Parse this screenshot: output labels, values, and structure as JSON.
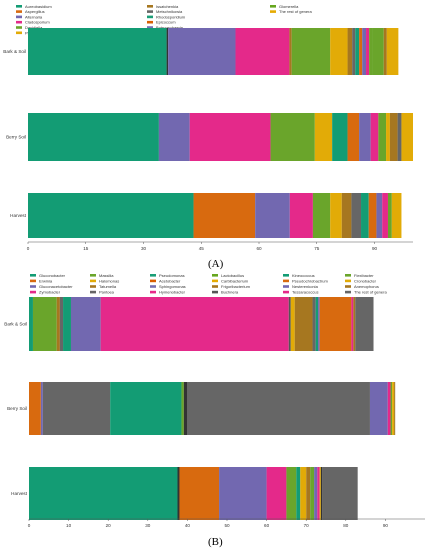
{
  "chart_data": [
    {
      "type": "bar",
      "orientation": "horizontal",
      "stacked": true,
      "panel_label": "(A)",
      "categories": [
        "Bark & Soil",
        "Berry Soil",
        "Harvest"
      ],
      "xlim": [
        0,
        100
      ],
      "xticks": [
        0,
        15,
        30,
        45,
        60,
        75,
        90
      ],
      "legend_position": "top",
      "grid": false,
      "legend": [
        {
          "name": "Aureobasidium",
          "color": "#139c74"
        },
        {
          "name": "Aspergillus",
          "color": "#d86a0f"
        },
        {
          "name": "Alternaria",
          "color": "#7268b0"
        },
        {
          "name": "Cladosporium",
          "color": "#e4298a"
        },
        {
          "name": "Davidiella",
          "color": "#6aa52b"
        },
        {
          "name": "Phaeoacremonium",
          "color": "#e2ab07"
        },
        {
          "name": "Issatchenkia",
          "color": "#a67720"
        },
        {
          "name": "Metschnikowia",
          "color": "#666666"
        },
        {
          "name": "Rhodosporidium",
          "color": "#1b9e77"
        },
        {
          "name": "Epicoccum",
          "color": "#d95f02"
        },
        {
          "name": "Botryosphaeria",
          "color": "#7570b3"
        },
        {
          "name": "Lewia",
          "color": "#e7298a"
        },
        {
          "name": "Glomerella",
          "color": "#66a61e"
        },
        {
          "name": "The rest of genera",
          "color": "#e6ab02"
        }
      ],
      "rows": [
        {
          "category": "Bark & Soil",
          "segments": [
            {
              "value": 36.0,
              "color": "#139c74"
            },
            {
              "value": 0.4,
              "color": "#333333"
            },
            {
              "value": 17.5,
              "color": "#7268b0"
            },
            {
              "value": 14.0,
              "color": "#e4298a"
            },
            {
              "value": 0.6,
              "color": "#a67720"
            },
            {
              "value": 10.0,
              "color": "#6aa52b"
            },
            {
              "value": 4.5,
              "color": "#e2ab07"
            },
            {
              "value": 1.2,
              "color": "#a67720"
            },
            {
              "value": 0.8,
              "color": "#666666"
            },
            {
              "value": 1.0,
              "color": "#139c74"
            },
            {
              "value": 0.8,
              "color": "#d86a0f"
            },
            {
              "value": 1.0,
              "color": "#7268b0"
            },
            {
              "value": 0.8,
              "color": "#e4298a"
            },
            {
              "value": 1.0,
              "color": "#6aa52b"
            },
            {
              "value": 2.8,
              "color": "#6aa52b"
            },
            {
              "value": 0.8,
              "color": "#a67720"
            },
            {
              "value": 3.0,
              "color": "#e2ab07"
            }
          ]
        },
        {
          "category": "Berry Soil",
          "segments": [
            {
              "value": 34.0,
              "color": "#139c74"
            },
            {
              "value": 8.0,
              "color": "#7268b0"
            },
            {
              "value": 21.0,
              "color": "#e4298a"
            },
            {
              "value": 11.5,
              "color": "#6aa52b"
            },
            {
              "value": 4.5,
              "color": "#e2ab07"
            },
            {
              "value": 4.0,
              "color": "#139c74"
            },
            {
              "value": 3.0,
              "color": "#d86a0f"
            },
            {
              "value": 3.0,
              "color": "#7268b0"
            },
            {
              "value": 2.0,
              "color": "#e4298a"
            },
            {
              "value": 2.0,
              "color": "#6aa52b"
            },
            {
              "value": 1.0,
              "color": "#e2ab07"
            },
            {
              "value": 2.0,
              "color": "#a67720"
            },
            {
              "value": 1.0,
              "color": "#666666"
            },
            {
              "value": 3.0,
              "color": "#e2ab07"
            }
          ]
        },
        {
          "category": "Harvest",
          "segments": [
            {
              "value": 43.0,
              "color": "#139c74"
            },
            {
              "value": 16.0,
              "color": "#d86a0f"
            },
            {
              "value": 9.0,
              "color": "#7268b0"
            },
            {
              "value": 6.0,
              "color": "#e4298a"
            },
            {
              "value": 4.5,
              "color": "#6aa52b"
            },
            {
              "value": 3.0,
              "color": "#e2ab07"
            },
            {
              "value": 2.5,
              "color": "#a67720"
            },
            {
              "value": 2.5,
              "color": "#666666"
            },
            {
              "value": 2.0,
              "color": "#139c74"
            },
            {
              "value": 2.0,
              "color": "#d86a0f"
            },
            {
              "value": 1.5,
              "color": "#7268b0"
            },
            {
              "value": 1.5,
              "color": "#e4298a"
            },
            {
              "value": 1.0,
              "color": "#6aa52b"
            },
            {
              "value": 2.5,
              "color": "#e2ab07"
            }
          ]
        }
      ]
    },
    {
      "type": "bar",
      "orientation": "horizontal",
      "stacked": true,
      "panel_label": "(B)",
      "categories": [
        "Bark & Soil",
        "Berry Soil",
        "Harvest"
      ],
      "xlim": [
        0,
        100
      ],
      "xticks": [
        0,
        10,
        20,
        30,
        40,
        50,
        60,
        70,
        80,
        90
      ],
      "legend_position": "top",
      "grid": false,
      "legend": [
        {
          "name": "Gluconobacter",
          "color": "#139c74"
        },
        {
          "name": "Erwinia",
          "color": "#d86a0f"
        },
        {
          "name": "Gluconacetobacter",
          "color": "#7268b0"
        },
        {
          "name": "Zymobacter",
          "color": "#e4298a"
        },
        {
          "name": "Massilia",
          "color": "#6aa52b"
        },
        {
          "name": "Halomonas",
          "color": "#e2ab07"
        },
        {
          "name": "Tatumella",
          "color": "#a67720"
        },
        {
          "name": "Pantoea",
          "color": "#666666"
        },
        {
          "name": "Pseudomonas",
          "color": "#1b9e77"
        },
        {
          "name": "Acetobacter",
          "color": "#d95f02"
        },
        {
          "name": "Sphingomonas",
          "color": "#7570b3"
        },
        {
          "name": "Hymenobacter",
          "color": "#e7298a"
        },
        {
          "name": "Lactobacillus",
          "color": "#66a61e"
        },
        {
          "name": "Carbibacterium",
          "color": "#e6ab02"
        },
        {
          "name": "Frigoribacterium",
          "color": "#a6761d"
        },
        {
          "name": "Buchnera",
          "color": "#555555"
        },
        {
          "name": "Kineococcus",
          "color": "#139c74"
        },
        {
          "name": "Pseudochrobactrum",
          "color": "#d86a0f"
        },
        {
          "name": "Nesterenkonia",
          "color": "#7268b0"
        },
        {
          "name": "Tessaracoccus",
          "color": "#e4298a"
        },
        {
          "name": "Fiexibacter",
          "color": "#6aa52b"
        },
        {
          "name": "Cronobacter",
          "color": "#e2ab07"
        },
        {
          "name": "Anemophorus",
          "color": "#a67720"
        },
        {
          "name": "The rest of genera",
          "color": "#666666"
        }
      ],
      "rows": [
        {
          "category": "Bark & Soil",
          "segments": [
            {
              "value": 1.0,
              "color": "#139c74"
            },
            {
              "value": 6.0,
              "color": "#6aa52b"
            },
            {
              "value": 0.8,
              "color": "#a67720"
            },
            {
              "value": 0.8,
              "color": "#666666"
            },
            {
              "value": 2.0,
              "color": "#139c74"
            },
            {
              "value": 7.5,
              "color": "#7268b0"
            },
            {
              "value": 47.5,
              "color": "#e4298a"
            },
            {
              "value": 0.5,
              "color": "#555555"
            },
            {
              "value": 1.0,
              "color": "#e2ab07"
            },
            {
              "value": 4.5,
              "color": "#a67720"
            },
            {
              "value": 0.8,
              "color": "#666666"
            },
            {
              "value": 0.6,
              "color": "#139c74"
            },
            {
              "value": 0.4,
              "color": "#7268b0"
            },
            {
              "value": 8.0,
              "color": "#d86a0f"
            },
            {
              "value": 0.5,
              "color": "#e4298a"
            },
            {
              "value": 0.5,
              "color": "#a67720"
            },
            {
              "value": 4.6,
              "color": "#666666"
            }
          ]
        },
        {
          "category": "Berry Soil",
          "segments": [
            {
              "value": 3.0,
              "color": "#d86a0f"
            },
            {
              "value": 0.5,
              "color": "#7268b0"
            },
            {
              "value": 17.0,
              "color": "#666666"
            },
            {
              "value": 18.0,
              "color": "#139c74"
            },
            {
              "value": 0.6,
              "color": "#6aa52b"
            },
            {
              "value": 0.8,
              "color": "#333333"
            },
            {
              "value": 46.2,
              "color": "#666666"
            },
            {
              "value": 4.5,
              "color": "#7268b0"
            },
            {
              "value": 0.7,
              "color": "#e4298a"
            },
            {
              "value": 0.4,
              "color": "#6aa52b"
            },
            {
              "value": 0.5,
              "color": "#e2ab07"
            },
            {
              "value": 0.3,
              "color": "#a67720"
            },
            {
              "value": 7.5,
              "color": "#ffffff"
            }
          ]
        },
        {
          "category": "Harvest",
          "segments": [
            {
              "value": 37.5,
              "color": "#139c74"
            },
            {
              "value": 0.5,
              "color": "#333333"
            },
            {
              "value": 10.0,
              "color": "#d86a0f"
            },
            {
              "value": 12.0,
              "color": "#7268b0"
            },
            {
              "value": 5.0,
              "color": "#e4298a"
            },
            {
              "value": 2.5,
              "color": "#6aa52b"
            },
            {
              "value": 1.0,
              "color": "#139c74"
            },
            {
              "value": 1.5,
              "color": "#e2ab07"
            },
            {
              "value": 1.0,
              "color": "#a67720"
            },
            {
              "value": 1.0,
              "color": "#6aa52b"
            },
            {
              "value": 0.8,
              "color": "#7268b0"
            },
            {
              "value": 0.6,
              "color": "#e4298a"
            },
            {
              "value": 0.3,
              "color": "#e2ab07"
            },
            {
              "value": 0.3,
              "color": "#333333"
            },
            {
              "value": 9.0,
              "color": "#666666"
            }
          ]
        }
      ]
    }
  ]
}
